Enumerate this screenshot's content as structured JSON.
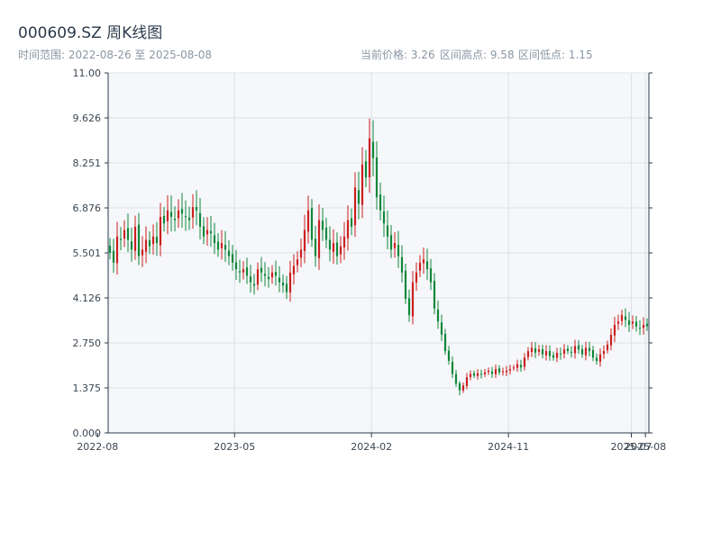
{
  "header": {
    "title": "000609.SZ 周K线图",
    "date_range": "时间范围: 2022-08-26 至 2025-08-08",
    "current_price": "当前价格: 3.26",
    "range_high": "区间高点: 9.58",
    "range_low": "区间低点: 1.15"
  },
  "colors": {
    "up": "#cc1f1f",
    "down": "#11873a",
    "plot_bg": "#f5f7fa",
    "grid": "#dde2e8",
    "axis": "#2b3a4a"
  },
  "chart_data": {
    "type": "candlestick",
    "title": "000609.SZ 周K线图",
    "ylim": [
      0,
      11
    ],
    "yticks": [
      "0.000",
      "1.375",
      "2.750",
      "4.126",
      "5.501",
      "6.876",
      "8.251",
      "9.626",
      "11.00"
    ],
    "xlim": [
      "2022-08-26",
      "2025-08-08"
    ],
    "xticks": [
      {
        "date": "2022-08-05",
        "label": "2022-08"
      },
      {
        "date": "2023-05-05",
        "label": "2023-05"
      },
      {
        "date": "2024-02-02",
        "label": "2024-02"
      },
      {
        "date": "2024-11-01",
        "label": "2024-11"
      },
      {
        "date": "2025-07-04",
        "label": "2025-07"
      },
      {
        "date": "2025-08-01",
        "label": "2025-08"
      }
    ],
    "grid": true,
    "closes": [
      5.5,
      5.2,
      6.0,
      5.9,
      6.2,
      5.9,
      5.6,
      6.3,
      5.4,
      5.6,
      5.9,
      5.7,
      6.0,
      5.8,
      6.6,
      6.4,
      6.8,
      6.6,
      6.5,
      6.8,
      6.7,
      6.6,
      6.5,
      6.9,
      6.8,
      6.3,
      6.0,
      6.2,
      6.1,
      5.8,
      5.6,
      5.8,
      5.6,
      5.4,
      5.2,
      5.0,
      4.9,
      5.0,
      4.8,
      4.6,
      4.5,
      5.0,
      4.9,
      4.8,
      4.7,
      4.9,
      4.8,
      4.6,
      4.5,
      4.3,
      4.9,
      5.1,
      5.3,
      5.6,
      6.2,
      6.8,
      5.9,
      5.4,
      6.5,
      6.2,
      5.9,
      5.6,
      5.8,
      5.4,
      5.7,
      6.0,
      6.5,
      6.3,
      7.5,
      7.0,
      8.2,
      7.8,
      9.0,
      8.4,
      7.2,
      6.8,
      6.4,
      6.0,
      5.6,
      5.8,
      5.4,
      4.9,
      4.1,
      3.6,
      4.6,
      4.9,
      5.2,
      5.3,
      5.0,
      4.6,
      3.8,
      3.4,
      3.0,
      2.5,
      2.2,
      1.8,
      1.5,
      1.3,
      1.45,
      1.7,
      1.8,
      1.75,
      1.82,
      1.78,
      1.85,
      1.9,
      1.8,
      1.95,
      1.85,
      1.88,
      1.9,
      1.95,
      2.0,
      2.1,
      2.0,
      2.3,
      2.5,
      2.6,
      2.45,
      2.55,
      2.4,
      2.5,
      2.35,
      2.3,
      2.45,
      2.4,
      2.55,
      2.5,
      2.45,
      2.65,
      2.55,
      2.4,
      2.6,
      2.5,
      2.3,
      2.2,
      2.4,
      2.5,
      2.7,
      3.0,
      3.3,
      3.4,
      3.6,
      3.45,
      3.3,
      3.4,
      3.25,
      3.2,
      3.3,
      3.26
    ],
    "high": 9.58,
    "low": 1.15,
    "last_close": 3.26
  }
}
